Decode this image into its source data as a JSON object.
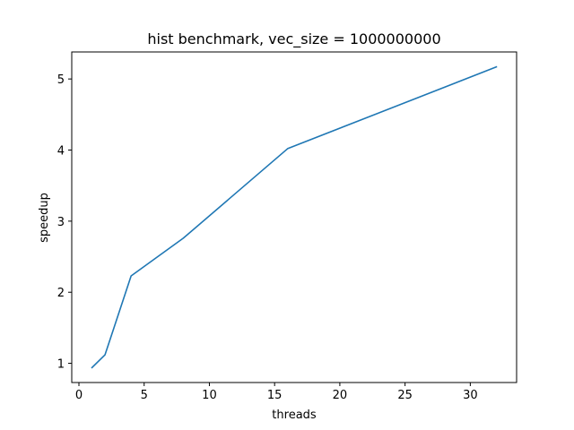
{
  "chart_data": {
    "type": "line",
    "title": "hist benchmark, vec_size = 1000000000",
    "xlabel": "threads",
    "ylabel": "speedup",
    "xlim": [
      -0.55,
      33.55
    ],
    "ylim": [
      0.73,
      5.38
    ],
    "xticks": [
      0,
      5,
      10,
      15,
      20,
      25,
      30
    ],
    "yticks": [
      1,
      2,
      3,
      4,
      5
    ],
    "grid": false,
    "series": [
      {
        "x": [
          1,
          2,
          4,
          8,
          16,
          32
        ],
        "y": [
          0.94,
          1.12,
          2.23,
          2.76,
          4.02,
          5.17
        ],
        "color": "#1f77b4"
      }
    ]
  }
}
